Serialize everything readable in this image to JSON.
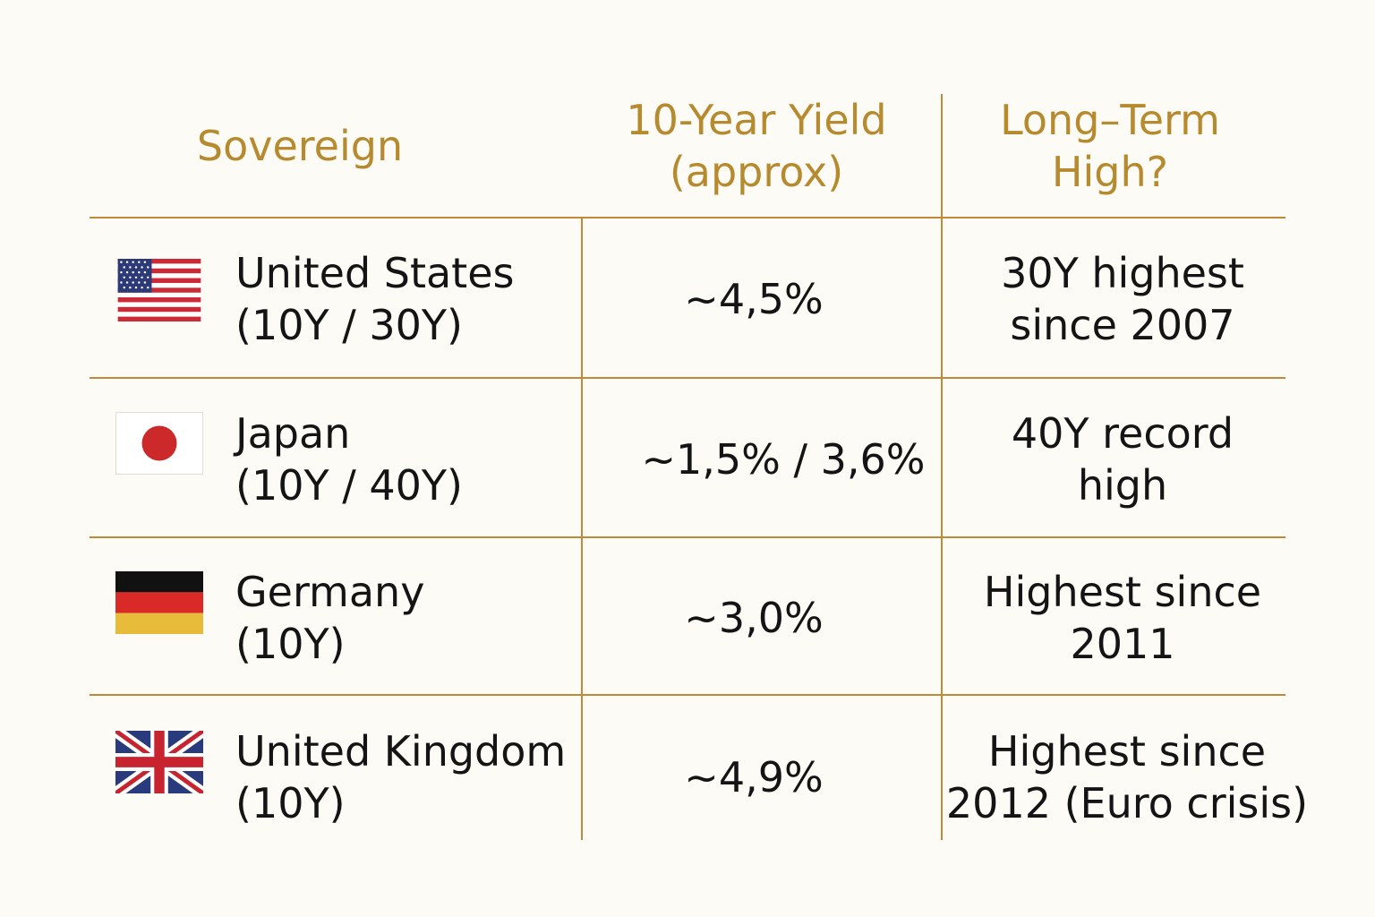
{
  "headers": {
    "sovereign": "Sovereign",
    "yield": "10-Year Yield\n(approx)",
    "high": "Long–Term\nHigh?"
  },
  "rows": [
    {
      "flag": "us-flag-icon",
      "name": "United States\n(10Y / 30Y)",
      "yield": "~4,5%",
      "high": "30Y highest\nsince 2007"
    },
    {
      "flag": "japan-flag-icon",
      "name": "Japan\n(10Y / 40Y)",
      "yield": "~1,5% / 3,6%",
      "high": "40Y record\nhigh"
    },
    {
      "flag": "germany-flag-icon",
      "name": "Germany\n(10Y)",
      "yield": "~3,0%",
      "high": "Highest since\n2011"
    },
    {
      "flag": "uk-flag-icon",
      "name": "United Kingdom\n(10Y)",
      "yield": "~4,9%",
      "high": "Highest since\n2012 (Euro crisis)"
    }
  ],
  "colors": {
    "background": "#fdfbf6",
    "header_text": "#b68a2e",
    "grid_line": "#c2893a",
    "body_text": "#141414"
  }
}
